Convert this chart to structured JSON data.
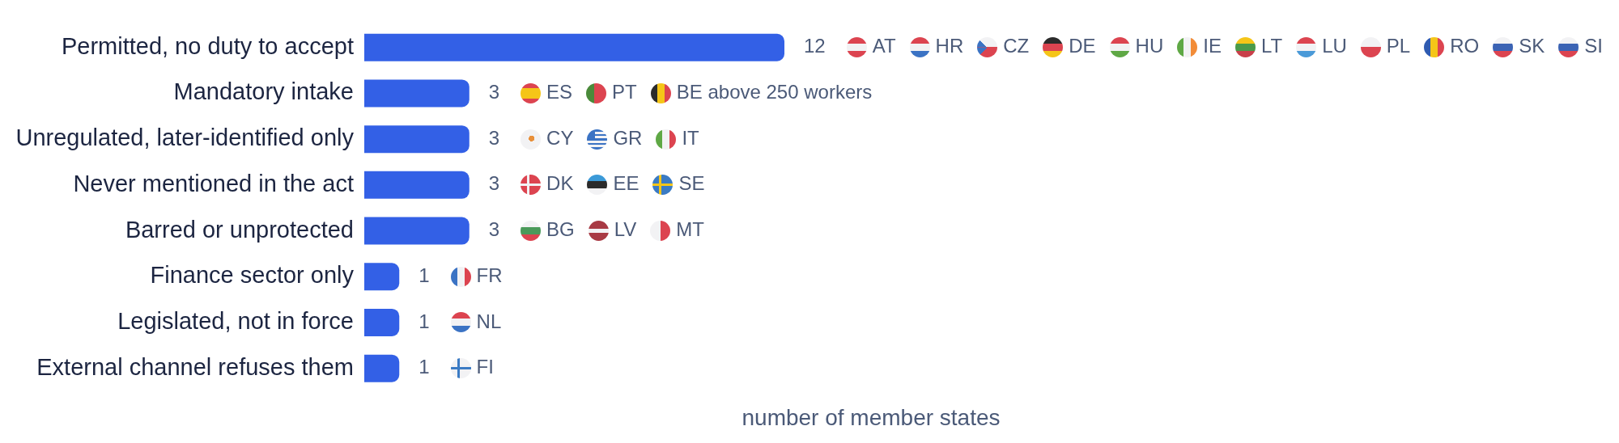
{
  "chart_data": {
    "type": "bar",
    "orientation": "horizontal",
    "xlabel": "number of member states",
    "categories": [
      "Permitted, no duty to accept",
      "Mandatory intake",
      "Unregulated, later-identified only",
      "Never mentioned in the act",
      "Barred or unprotected",
      "Finance sector only",
      "Legislated, not in force",
      "External channel refuses them"
    ],
    "values": [
      12,
      3,
      3,
      3,
      3,
      1,
      1,
      1
    ],
    "color": "#3360e6",
    "data_labels": true,
    "tick_labels": "y",
    "grid": false,
    "legend": false,
    "annotations": [
      "AT",
      "HR",
      "CZ",
      "DE",
      "HU",
      "IE",
      "LT",
      "LU",
      "PL",
      "RO",
      "SK",
      "SI",
      "ES",
      "PT",
      "BE above 250 workers",
      "CY",
      "GR",
      "IT",
      "DK",
      "EE",
      "SE",
      "BG",
      "LV",
      "MT",
      "FR",
      "NL",
      "FI"
    ]
  }
}
